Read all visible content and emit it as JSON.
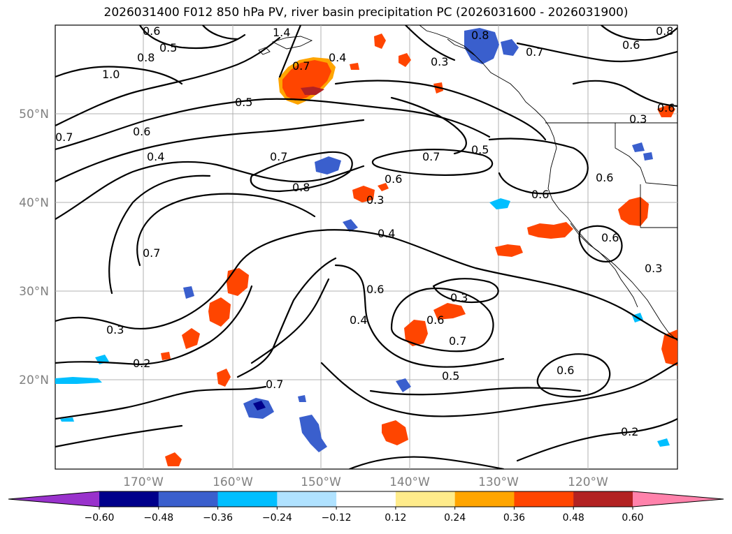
{
  "title": "2026031400 F012 850 hPa PV, river basin precipitation PC (2026031600 - 2026031900)",
  "lat_labels": [
    "50°N",
    "40°N",
    "30°N",
    "20°N"
  ],
  "lon_labels": [
    "170°W",
    "160°W",
    "150°W",
    "140°W",
    "130°W",
    "120°W"
  ],
  "colorbar": {
    "colors": [
      "#9932cc",
      "#00008b",
      "#3a5fcd",
      "#00bfff",
      "#b0e2ff",
      "#ffffff",
      "#ffec8b",
      "#ffa500",
      "#ff4500",
      "#b22222",
      "#ff82ab"
    ],
    "tick_labels": [
      "−0.60",
      "−0.48",
      "−0.36",
      "−0.24",
      "−0.12",
      "0.12",
      "0.24",
      "0.36",
      "0.48",
      "0.60"
    ]
  },
  "contour_labels": [
    "0.6",
    "0.5",
    "0.8",
    "1.0",
    "1.4",
    "0.7",
    "0.4",
    "0.8",
    "0.3",
    "0.6",
    "0.7",
    "0.8",
    "0.7",
    "0.6",
    "0.5",
    "0.7",
    "0.6",
    "0.4",
    "0.7",
    "0.8",
    "0.6",
    "0.3",
    "0.6",
    "0.7",
    "0.5",
    "0.3",
    "0.6",
    "0.4",
    "0.7",
    "0.6",
    "0.3",
    "0.3",
    "0.2",
    "0.4",
    "0.6",
    "0.3",
    "0.6",
    "0.7",
    "0.5",
    "0.6",
    "0.2",
    "0.3",
    "0.6",
    "0.6",
    "0.8"
  ],
  "map_features": [
    "north-america-coastline",
    "mexico-border",
    "canada-us-border"
  ],
  "precip_anomalies": {
    "positive_colors": [
      "#ffec8b",
      "#ffa500",
      "#ff4500",
      "#b22222"
    ],
    "negative_colors": [
      "#b0e2ff",
      "#00bfff",
      "#3a5fcd",
      "#00008b"
    ]
  }
}
